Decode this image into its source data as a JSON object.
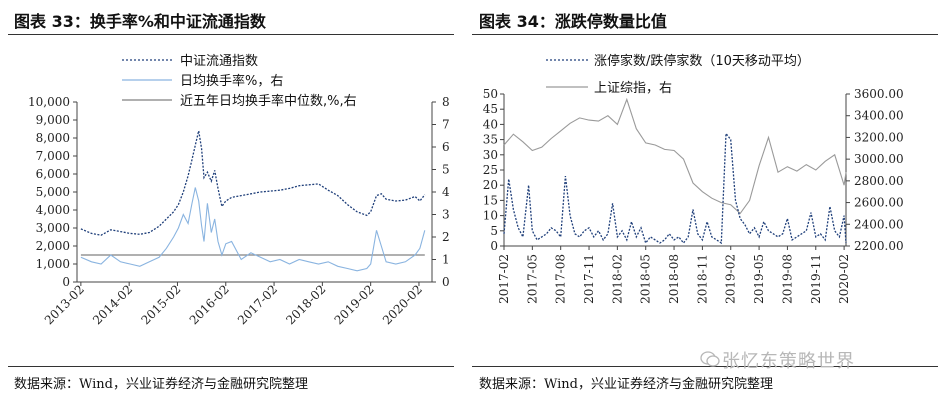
{
  "left_panel": {
    "title": "图表 33：换手率%和中证流通指数",
    "source": "数据来源：Wind，兴业证券经济与金融研究院整理"
  },
  "right_panel": {
    "title": "图表 34：涨跌停数量比值",
    "source": "数据来源：Wind，兴业证券经济与金融研究院整理"
  },
  "watermark": {
    "text": "张忆东策略世界",
    "icon": "wechat-icon"
  },
  "colors": {
    "index": "#1f3f7a",
    "turnover": "#8ab4e0",
    "median": "#808080",
    "ratio": "#1f3f7a",
    "sh": "#9a9a9a"
  },
  "chart_data": [
    {
      "type": "line",
      "title": "图表 33：换手率%和中证流通指数",
      "x_ticks": [
        "2013-02",
        "2014-02",
        "2015-02",
        "2016-02",
        "2017-02",
        "2018-02",
        "2019-02",
        "2020-02"
      ],
      "y_left": {
        "lim": [
          0,
          10000
        ],
        "ticks": [
          "0",
          "1,000",
          "2,000",
          "3,000",
          "4,000",
          "5,000",
          "6,000",
          "7,000",
          "8,000",
          "9,000",
          "10,000"
        ]
      },
      "y_right": {
        "lim": [
          0,
          8
        ],
        "ticks": [
          "0",
          "1",
          "2",
          "3",
          "4",
          "5",
          "6",
          "7",
          "8"
        ]
      },
      "series": [
        {
          "name": "中证流通指数",
          "axis": "left",
          "style": "dashed",
          "x": [
            2013.08,
            2013.3,
            2013.5,
            2013.7,
            2013.9,
            2014.1,
            2014.3,
            2014.5,
            2014.7,
            2014.85,
            2015.0,
            2015.1,
            2015.2,
            2015.3,
            2015.38,
            2015.45,
            2015.52,
            2015.58,
            2015.63,
            2015.7,
            2015.78,
            2015.85,
            2015.92,
            2016.0,
            2016.08,
            2016.2,
            2016.4,
            2016.6,
            2016.8,
            2017.0,
            2017.2,
            2017.4,
            2017.6,
            2017.8,
            2018.0,
            2018.2,
            2018.4,
            2018.6,
            2018.8,
            2019.0,
            2019.08,
            2019.2,
            2019.3,
            2019.4,
            2019.6,
            2019.8,
            2020.0,
            2020.1,
            2020.2
          ],
          "values": [
            2950,
            2700,
            2600,
            2900,
            2800,
            2700,
            2650,
            2750,
            3100,
            3500,
            3900,
            4300,
            5000,
            5900,
            6800,
            7600,
            8400,
            7400,
            5800,
            6100,
            5600,
            6200,
            5200,
            4200,
            4500,
            4700,
            4800,
            4900,
            5000,
            5050,
            5100,
            5200,
            5350,
            5400,
            5450,
            5100,
            4800,
            4300,
            3900,
            3700,
            3900,
            4800,
            4900,
            4600,
            4500,
            4550,
            4750,
            4500,
            4850
          ]
        },
        {
          "name": "日均换手率%，右",
          "axis": "right",
          "style": "solid",
          "x": [
            2013.08,
            2013.3,
            2013.5,
            2013.7,
            2013.9,
            2014.1,
            2014.3,
            2014.5,
            2014.7,
            2014.85,
            2015.0,
            2015.1,
            2015.2,
            2015.3,
            2015.38,
            2015.45,
            2015.52,
            2015.58,
            2015.63,
            2015.7,
            2015.78,
            2015.85,
            2015.92,
            2016.0,
            2016.08,
            2016.2,
            2016.4,
            2016.6,
            2016.8,
            2017.0,
            2017.2,
            2017.4,
            2017.6,
            2017.8,
            2018.0,
            2018.2,
            2018.4,
            2018.6,
            2018.8,
            2019.0,
            2019.08,
            2019.2,
            2019.3,
            2019.4,
            2019.6,
            2019.8,
            2020.0,
            2020.1,
            2020.2
          ],
          "values": [
            1.1,
            0.9,
            0.8,
            1.2,
            0.9,
            0.8,
            0.7,
            0.9,
            1.1,
            1.5,
            2.0,
            2.4,
            3.0,
            2.6,
            3.5,
            4.2,
            3.6,
            2.5,
            1.8,
            3.5,
            2.2,
            2.8,
            1.8,
            1.2,
            1.7,
            1.8,
            1.0,
            1.3,
            1.1,
            0.9,
            1.0,
            0.8,
            1.0,
            0.9,
            0.8,
            0.9,
            0.7,
            0.6,
            0.5,
            0.6,
            0.8,
            2.3,
            1.6,
            0.9,
            0.8,
            0.9,
            1.2,
            1.5,
            2.3
          ]
        },
        {
          "name": "近五年日均换手率中位数,%,右",
          "axis": "right",
          "style": "solid",
          "x": [
            2013.08,
            2020.2
          ],
          "values": [
            1.2,
            1.2
          ]
        }
      ]
    },
    {
      "type": "line",
      "title": "图表 34：涨跌停数量比值",
      "x_ticks": [
        "2017-02",
        "2017-05",
        "2017-08",
        "2017-11",
        "2018-02",
        "2018-05",
        "2018-08",
        "2018-11",
        "2019-02",
        "2019-05",
        "2019-08",
        "2019-11",
        "2020-02"
      ],
      "y_left": {
        "lim": [
          0,
          50
        ],
        "ticks": [
          "0",
          "5",
          "10",
          "15",
          "20",
          "25",
          "30",
          "35",
          "40",
          "45",
          "50"
        ]
      },
      "y_right": {
        "lim": [
          2200,
          3600
        ],
        "ticks": [
          "2200.00",
          "2400.00",
          "2600.00",
          "2800.00",
          "3000.00",
          "3200.00",
          "3400.00",
          "3600.00"
        ]
      },
      "series": [
        {
          "name": "涨停家数/跌停家数（10天移动平均）",
          "axis": "left",
          "style": "dashed",
          "x": [
            0,
            0.5,
            1,
            1.5,
            2,
            2.6,
            3,
            3.5,
            4,
            4.5,
            5,
            5.5,
            6,
            6.5,
            7,
            7.5,
            8,
            8.5,
            9,
            9.5,
            10,
            10.5,
            11,
            11.5,
            12,
            12.5,
            13,
            13.5,
            14,
            14.5,
            15,
            15.5,
            16,
            16.5,
            17,
            17.5,
            18,
            18.5,
            19,
            19.5,
            20,
            20.5,
            21,
            21.5,
            22,
            22.5,
            23,
            23.5,
            24,
            24.5,
            25,
            25.5,
            26,
            26.5,
            27,
            27.5,
            28,
            28.5,
            29,
            29.5,
            30,
            30.5,
            31,
            31.5,
            32,
            32.5,
            33,
            33.5,
            34,
            34.5,
            35,
            35.5,
            36,
            36.2
          ],
          "values": [
            4,
            22,
            12,
            6,
            3,
            20,
            5,
            2,
            3,
            4,
            6,
            5,
            3,
            23,
            10,
            4,
            3,
            5,
            6,
            3,
            5,
            2,
            4,
            14,
            3,
            5,
            2,
            8,
            3,
            6,
            1,
            3,
            2,
            1,
            2,
            4,
            2,
            3,
            1,
            3,
            12,
            4,
            2,
            8,
            3,
            2,
            1,
            37,
            35,
            15,
            9,
            7,
            4,
            6,
            3,
            8,
            5,
            4,
            3,
            4,
            9,
            2,
            3,
            4,
            5,
            11,
            3,
            4,
            2,
            13,
            5,
            3,
            10,
            1
          ]
        },
        {
          "name": "上证综指，右",
          "axis": "right",
          "style": "solid",
          "x": [
            0,
            1,
            2,
            3,
            4,
            5,
            6,
            7,
            8,
            9,
            10,
            11,
            12,
            13,
            14,
            15,
            16,
            17,
            18,
            19,
            20,
            21,
            22,
            23,
            24,
            25,
            26,
            27,
            28,
            29,
            30,
            31,
            32,
            33,
            34,
            35,
            36,
            36.2
          ],
          "values": [
            3130,
            3230,
            3160,
            3080,
            3110,
            3190,
            3260,
            3330,
            3380,
            3360,
            3350,
            3400,
            3320,
            3550,
            3280,
            3150,
            3130,
            3090,
            3080,
            3000,
            2780,
            2700,
            2640,
            2600,
            2580,
            2500,
            2620,
            2940,
            3200,
            2880,
            2930,
            2890,
            2950,
            2900,
            2980,
            3040,
            2760,
            2880
          ]
        }
      ]
    }
  ]
}
